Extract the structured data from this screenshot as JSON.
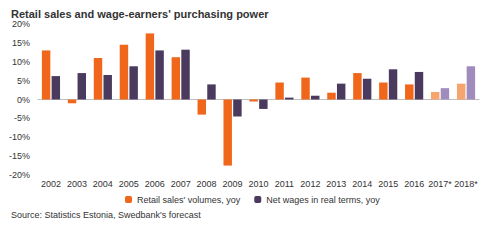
{
  "chart_data": {
    "type": "bar",
    "title": "Retail sales and wage-earners' purchasing power",
    "source": "Source: Statistics Estonia, Swedbank's forecast",
    "categories": [
      "2002",
      "2003",
      "2004",
      "2005",
      "2006",
      "2007",
      "2008",
      "2009",
      "2010",
      "2011",
      "2012",
      "2013",
      "2014",
      "2015",
      "2016",
      "2017*",
      "2018*"
    ],
    "series": [
      {
        "name": "Retail sales' volumes, yoy",
        "color": "#f0661a",
        "colors": [
          "#f0661a",
          "#f0661a",
          "#f0661a",
          "#f0661a",
          "#f0661a",
          "#f0661a",
          "#f0661a",
          "#f0661a",
          "#f0661a",
          "#f0661a",
          "#f0661a",
          "#f0661a",
          "#f0661a",
          "#f0661a",
          "#f0661a",
          "#f6a56e",
          "#f6a56e"
        ],
        "values": [
          13,
          -1,
          11,
          14.5,
          17.5,
          11.2,
          -4,
          -17.5,
          -0.5,
          4.5,
          5.8,
          1.8,
          7,
          4.5,
          4,
          2,
          4.2
        ]
      },
      {
        "name": "Net wages in real terms, yoy",
        "color": "#4a3a5e",
        "colors": [
          "#4a3a5e",
          "#4a3a5e",
          "#4a3a5e",
          "#4a3a5e",
          "#4a3a5e",
          "#4a3a5e",
          "#4a3a5e",
          "#4a3a5e",
          "#4a3a5e",
          "#4a3a5e",
          "#4a3a5e",
          "#4a3a5e",
          "#4a3a5e",
          "#4a3a5e",
          "#4a3a5e",
          "#a08cbc",
          "#a08cbc"
        ],
        "values": [
          6.2,
          7,
          6.5,
          8.8,
          13,
          13.2,
          4,
          -4.5,
          -2.5,
          0.5,
          1,
          4.2,
          5.5,
          8,
          7.3,
          3,
          8.8
        ]
      }
    ],
    "ylim": [
      -20,
      20
    ],
    "yticks": [
      {
        "value": -20,
        "label": "-20%"
      },
      {
        "value": -15,
        "label": "-15%"
      },
      {
        "value": -10,
        "label": "-10%"
      },
      {
        "value": -5,
        "label": "-5%"
      },
      {
        "value": 0,
        "label": "0%"
      },
      {
        "value": 5,
        "label": "5%"
      },
      {
        "value": 10,
        "label": "10%"
      },
      {
        "value": 15,
        "label": "15%"
      },
      {
        "value": 20,
        "label": "20%"
      }
    ],
    "grid": false,
    "legend": "bottom"
  }
}
